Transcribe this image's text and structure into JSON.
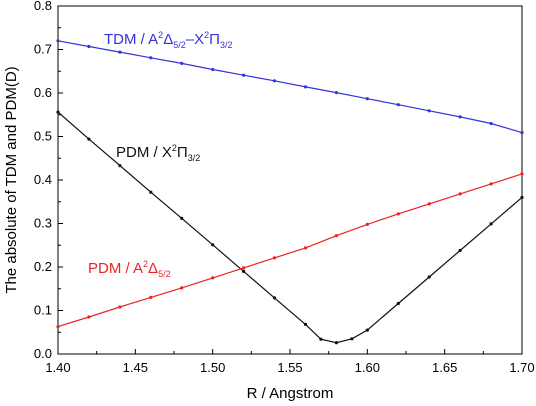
{
  "chart_data": {
    "type": "line",
    "xlabel": "R / Angstrom",
    "ylabel": "The absolute of TDM and PDM(D)",
    "xlim": [
      1.4,
      1.7
    ],
    "ylim": [
      0.0,
      0.8
    ],
    "x_ticks": [
      "1.40",
      "1.45",
      "1.50",
      "1.55",
      "1.60",
      "1.65",
      "1.70"
    ],
    "y_ticks": [
      "0.0",
      "0.1",
      "0.2",
      "0.3",
      "0.4",
      "0.5",
      "0.6",
      "0.7",
      "0.8"
    ],
    "grid": false,
    "series": [
      {
        "name": "TDM / A²Δ5/2–X²Π3/2",
        "label_parts": [
          "TDM / A",
          "2",
          "Δ",
          "5/2",
          "–X",
          "2",
          "Π",
          "3/2"
        ],
        "color": "#3333dd",
        "x": [
          1.4,
          1.42,
          1.44,
          1.46,
          1.48,
          1.5,
          1.52,
          1.54,
          1.56,
          1.58,
          1.6,
          1.62,
          1.64,
          1.66,
          1.68,
          1.7
        ],
        "y": [
          0.72,
          0.707,
          0.694,
          0.681,
          0.668,
          0.654,
          0.641,
          0.628,
          0.614,
          0.601,
          0.587,
          0.573,
          0.559,
          0.545,
          0.53,
          0.509
        ]
      },
      {
        "name": "PDM / X²Π3/2",
        "label_parts": [
          "PDM / X",
          "2",
          "Π",
          "3/2"
        ],
        "color": "#111111",
        "x": [
          1.4,
          1.42,
          1.44,
          1.46,
          1.48,
          1.5,
          1.52,
          1.54,
          1.56,
          1.57,
          1.58,
          1.59,
          1.6,
          1.62,
          1.64,
          1.66,
          1.68,
          1.7
        ],
        "y": [
          0.556,
          0.494,
          0.433,
          0.372,
          0.312,
          0.251,
          0.19,
          0.129,
          0.068,
          0.034,
          0.026,
          0.035,
          0.055,
          0.116,
          0.177,
          0.238,
          0.299,
          0.36
        ]
      },
      {
        "name": "PDM / A²Δ5/2",
        "label_parts": [
          "PDM / A",
          "2",
          "Δ",
          "5/2"
        ],
        "color": "#ee2222",
        "x": [
          1.4,
          1.42,
          1.44,
          1.46,
          1.48,
          1.5,
          1.52,
          1.54,
          1.56,
          1.58,
          1.6,
          1.62,
          1.64,
          1.66,
          1.68,
          1.7
        ],
        "y": [
          0.063,
          0.085,
          0.108,
          0.13,
          0.152,
          0.175,
          0.198,
          0.221,
          0.244,
          0.272,
          0.298,
          0.322,
          0.345,
          0.368,
          0.391,
          0.414
        ]
      }
    ]
  }
}
